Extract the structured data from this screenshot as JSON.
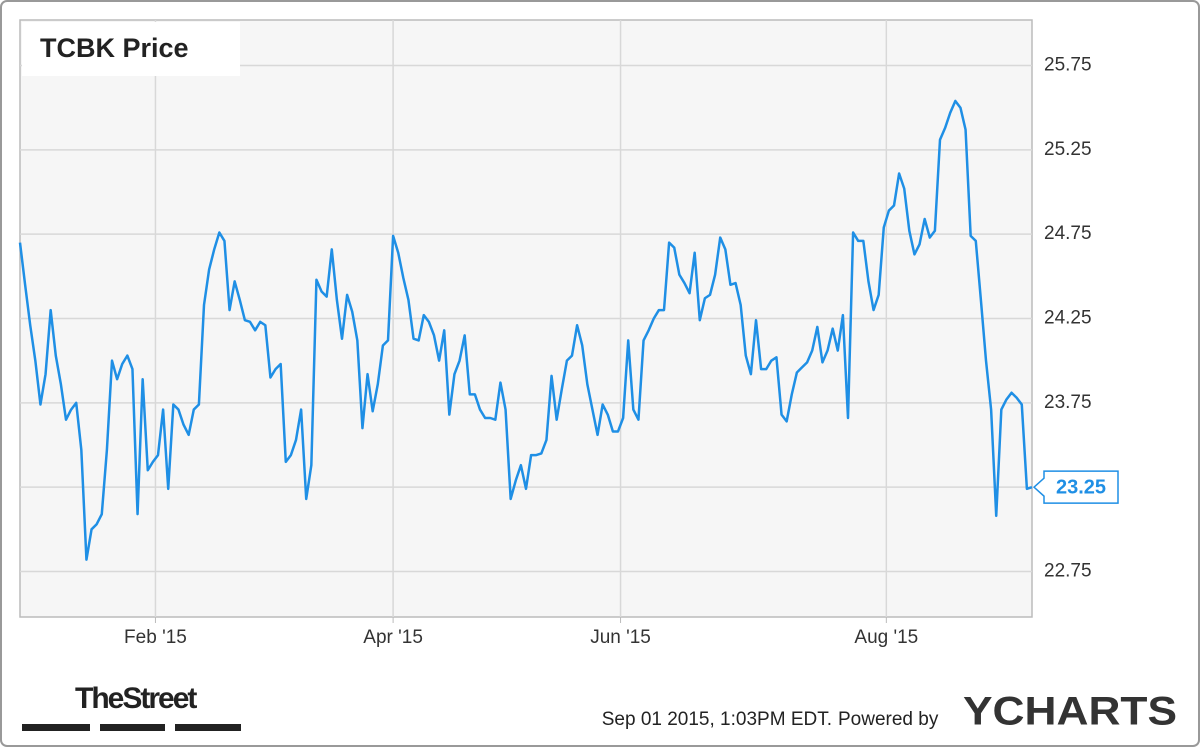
{
  "chart_data": {
    "type": "line",
    "title": "TCBK Price",
    "series": [
      {
        "name": "TCBK Price",
        "color": "#1f8fe5",
        "values": [
          24.7,
          24.45,
          24.21,
          24.0,
          23.74,
          23.92,
          24.3,
          24.03,
          23.86,
          23.65,
          23.71,
          23.75,
          23.47,
          22.82,
          23.0,
          23.03,
          23.09,
          23.47,
          24.0,
          23.89,
          23.98,
          24.03,
          23.95,
          23.09,
          23.89,
          23.35,
          23.4,
          23.44,
          23.71,
          23.24,
          23.74,
          23.71,
          23.62,
          23.56,
          23.71,
          23.74,
          24.33,
          24.54,
          24.66,
          24.76,
          24.71,
          24.3,
          24.47,
          24.36,
          24.24,
          24.23,
          24.18,
          24.23,
          24.21,
          23.9,
          23.95,
          23.98,
          23.4,
          23.44,
          23.53,
          23.71,
          23.18,
          23.38,
          24.48,
          24.41,
          24.38,
          24.66,
          24.36,
          24.13,
          24.39,
          24.29,
          24.12,
          23.6,
          23.92,
          23.7,
          23.86,
          24.09,
          24.12,
          24.74,
          24.64,
          24.49,
          24.36,
          24.13,
          24.12,
          24.27,
          24.23,
          24.15,
          24.0,
          24.18,
          23.68,
          23.92,
          24.0,
          24.15,
          23.8,
          23.8,
          23.71,
          23.66,
          23.66,
          23.65,
          23.87,
          23.71,
          23.18,
          23.29,
          23.38,
          23.24,
          23.44,
          23.44,
          23.45,
          23.53,
          23.91,
          23.65,
          23.83,
          24.0,
          24.03,
          24.21,
          24.09,
          23.86,
          23.71,
          23.56,
          23.74,
          23.68,
          23.58,
          23.58,
          23.66,
          24.12,
          23.71,
          23.65,
          24.12,
          24.18,
          24.25,
          24.3,
          24.3,
          24.7,
          24.67,
          24.51,
          24.46,
          24.4,
          24.64,
          24.24,
          24.37,
          24.39,
          24.51,
          24.73,
          24.66,
          24.45,
          24.46,
          24.33,
          24.03,
          23.92,
          24.24,
          23.95,
          23.95,
          24.0,
          24.02,
          23.68,
          23.64,
          23.8,
          23.93,
          23.96,
          23.99,
          24.06,
          24.2,
          23.99,
          24.06,
          24.19,
          24.06,
          24.27,
          23.66,
          24.76,
          24.71,
          24.71,
          24.47,
          24.3,
          24.39,
          24.79,
          24.89,
          24.92,
          25.11,
          25.02,
          24.77,
          24.63,
          24.69,
          24.84,
          24.73,
          24.77,
          25.31,
          25.38,
          25.47,
          25.54,
          25.5,
          25.37,
          24.74,
          24.71,
          24.36,
          24.0,
          23.71,
          23.08,
          23.71,
          23.77,
          23.81,
          23.78,
          23.74,
          23.24,
          23.25
        ]
      }
    ],
    "xlim": [
      0,
      198
    ],
    "xticks": [
      {
        "value": 26.5,
        "label": "Feb '15"
      },
      {
        "value": 73,
        "label": "Apr '15"
      },
      {
        "value": 117.5,
        "label": "Jun '15"
      },
      {
        "value": 169.5,
        "label": "Aug '15"
      }
    ],
    "ylim": [
      22.48,
      26.02
    ],
    "yticks": [
      22.75,
      23.25,
      23.75,
      24.25,
      24.75,
      25.25,
      25.75
    ],
    "grid": true,
    "timestamp": "Sep 01 2015, 1:03PM EDT.",
    "powered_by": "Powered by",
    "brand": "YCHARTS",
    "source": "TheStreet"
  }
}
